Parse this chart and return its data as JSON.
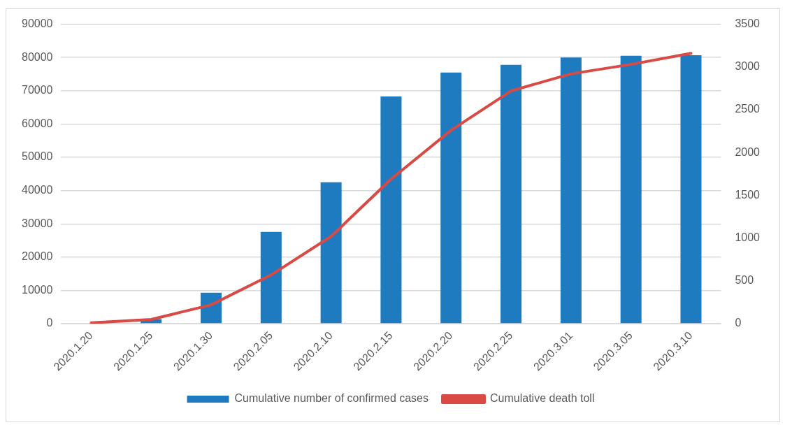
{
  "chart_data": {
    "type": "bar",
    "categories": [
      "2020.1.20",
      "2020.1.25",
      "2020.1.30",
      "2020.2.05",
      "2020.2.10",
      "2020.2.15",
      "2020.2.20",
      "2020.2.25",
      "2020.3.01",
      "2020.3.05",
      "2020.3.10"
    ],
    "series": [
      {
        "name": "Cumulative number of confirmed cases",
        "color": "#1f7bbf",
        "values": [
          null,
          1400,
          9300,
          27600,
          42500,
          68300,
          75500,
          77800,
          80000,
          80500,
          80700
        ]
      },
      {
        "name": "Cumulative death toll",
        "type": "line",
        "axis": "y2",
        "color": "#d94a45",
        "marker": "none",
        "values": [
          10,
          50,
          220,
          570,
          1020,
          1690,
          2260,
          2720,
          2920,
          3030,
          3160
        ]
      }
    ],
    "ylim": [
      0,
      90000
    ],
    "yticks": [
      0,
      10000,
      20000,
      30000,
      40000,
      50000,
      60000,
      70000,
      80000,
      90000
    ],
    "y2lim": [
      0,
      3500
    ],
    "y2ticks": [
      0,
      500,
      1000,
      1500,
      2000,
      2500,
      3000,
      3500
    ],
    "grid": "y",
    "legend": "bottom"
  }
}
